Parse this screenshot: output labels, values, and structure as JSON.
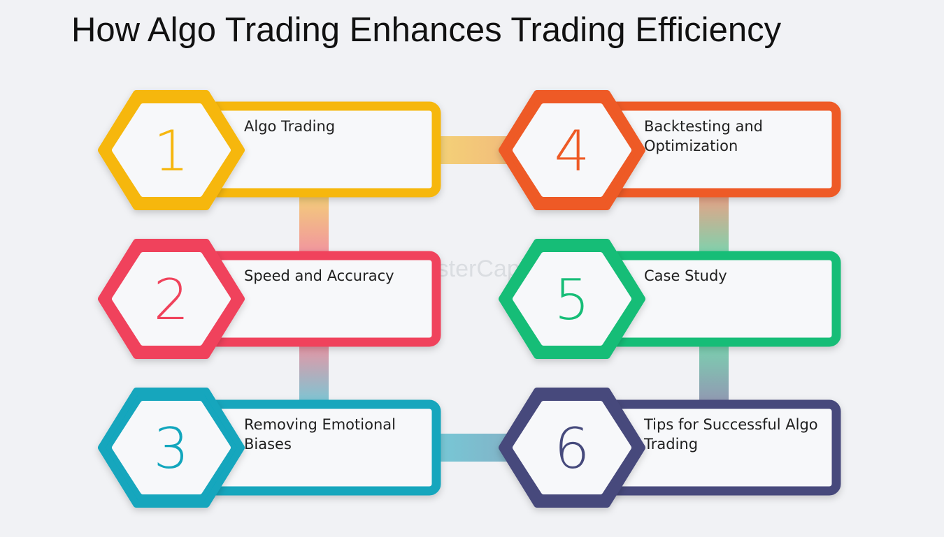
{
  "title": "How Algo Trading Enhances Trading Efficiency",
  "watermark": "FasterCapital",
  "steps": [
    {
      "number": "1",
      "lines": [
        "Algo Trading"
      ],
      "color": "#f6b70f"
    },
    {
      "number": "2",
      "lines": [
        "Speed and Accuracy"
      ],
      "color": "#f0435c"
    },
    {
      "number": "3",
      "lines": [
        "Removing Emotional",
        "Biases"
      ],
      "color": "#12a6bd"
    },
    {
      "number": "4",
      "lines": [
        "Backtesting and",
        "Optimization"
      ],
      "color": "#ee5a25"
    },
    {
      "number": "5",
      "lines": [
        "Case Study"
      ],
      "color": "#16bd77"
    },
    {
      "number": "6",
      "lines": [
        "Tips for Successful Algo",
        "Trading"
      ],
      "color": "#464a7c"
    }
  ]
}
